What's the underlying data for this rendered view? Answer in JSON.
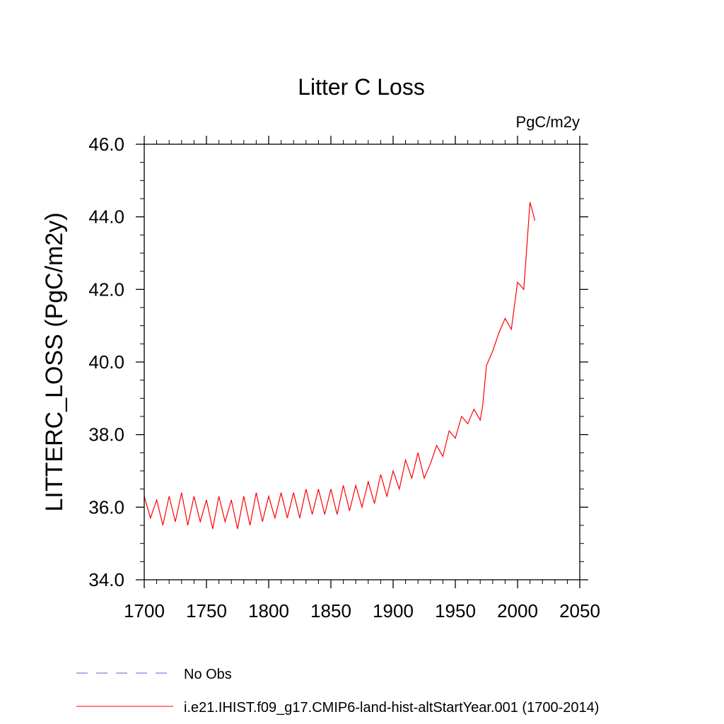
{
  "chart_data": {
    "type": "line",
    "title": "Litter C Loss",
    "units_label": "PgC/m2y",
    "ylabel": "LITTERC_LOSS  (PgC/m2y)",
    "xlabel": "",
    "xlim": [
      1700,
      2050
    ],
    "ylim": [
      34.0,
      46.0
    ],
    "x_ticks": [
      1700,
      1750,
      1800,
      1850,
      1900,
      1950,
      2000,
      2050
    ],
    "x_tick_labels": [
      "1700",
      "1750",
      "1800",
      "1850",
      "1900",
      "1950",
      "2000",
      "2050"
    ],
    "y_ticks": [
      34.0,
      36.0,
      38.0,
      40.0,
      42.0,
      44.0,
      46.0
    ],
    "y_tick_labels": [
      "34.0",
      "36.0",
      "38.0",
      "40.0",
      "42.0",
      "44.0",
      "46.0"
    ],
    "grid": false,
    "legend_position": "bottom-left, below plot",
    "series": [
      {
        "name": "No Obs",
        "color": "#6a5acd",
        "style": "dashed",
        "x": [],
        "y": []
      },
      {
        "name": "i.e21.IHIST.f09_g17.CMIP6-land-hist-altStartYear.001 (1700-2014)",
        "color": "#ff0000",
        "style": "solid",
        "x": [
          1700,
          1705,
          1710,
          1715,
          1720,
          1725,
          1730,
          1735,
          1740,
          1745,
          1750,
          1755,
          1760,
          1765,
          1770,
          1775,
          1780,
          1785,
          1790,
          1795,
          1800,
          1805,
          1810,
          1815,
          1820,
          1825,
          1830,
          1835,
          1840,
          1845,
          1850,
          1855,
          1860,
          1865,
          1870,
          1875,
          1880,
          1885,
          1890,
          1895,
          1900,
          1905,
          1910,
          1915,
          1920,
          1925,
          1930,
          1935,
          1940,
          1945,
          1950,
          1955,
          1960,
          1965,
          1970,
          1972,
          1975,
          1980,
          1985,
          1990,
          1995,
          2000,
          2005,
          2010,
          2014
        ],
        "y": [
          36.3,
          35.7,
          36.2,
          35.5,
          36.3,
          35.6,
          36.4,
          35.5,
          36.3,
          35.6,
          36.2,
          35.4,
          36.3,
          35.6,
          36.2,
          35.4,
          36.3,
          35.5,
          36.4,
          35.6,
          36.3,
          35.7,
          36.4,
          35.7,
          36.4,
          35.7,
          36.5,
          35.8,
          36.5,
          35.8,
          36.5,
          35.8,
          36.6,
          35.9,
          36.6,
          36.0,
          36.7,
          36.1,
          36.9,
          36.3,
          37.0,
          36.5,
          37.3,
          36.8,
          37.5,
          36.8,
          37.2,
          37.7,
          37.4,
          38.1,
          37.9,
          38.5,
          38.3,
          38.7,
          38.4,
          38.8,
          39.9,
          40.3,
          40.8,
          41.2,
          40.9,
          42.2,
          42.0,
          44.4,
          43.9
        ]
      }
    ]
  }
}
